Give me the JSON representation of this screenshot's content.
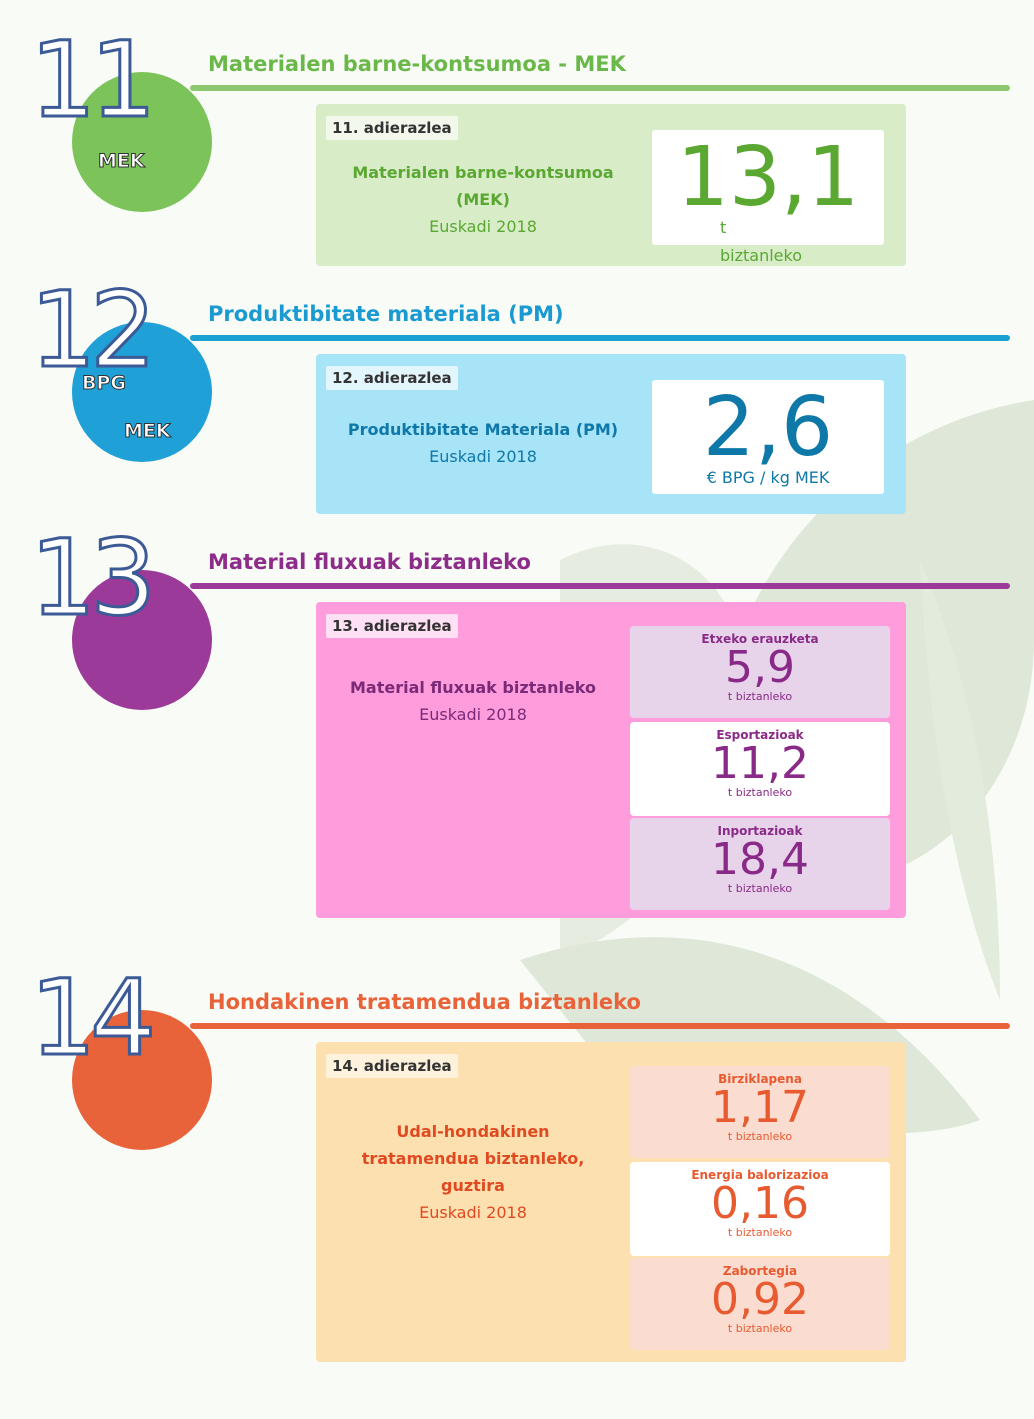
{
  "sections": [
    {
      "number": "11",
      "title": "Materialen barne-kontsumoa - MEK",
      "icon_labels": [
        "MEK"
      ],
      "indicator": "11. adierazlea",
      "description": [
        "Materialen barne-kontsumoa",
        "(MEK)"
      ],
      "region": "Euskadi 2018",
      "value": "13,1",
      "unit": [
        "t",
        "biztanleko"
      ]
    },
    {
      "number": "12",
      "title": "Produktibitate materiala (PM)",
      "icon_labels": [
        "BPG",
        "MEK"
      ],
      "indicator": "12. adierazlea",
      "description": [
        "Produktibitate Materiala (PM)"
      ],
      "region": "Euskadi 2018",
      "value": "2,6",
      "unit": [
        "€ BPG / kg MEK"
      ]
    },
    {
      "number": "13",
      "title": "Material fluxuak biztanleko",
      "indicator": "13. adierazlea",
      "description": [
        "Material fluxuak biztanleko"
      ],
      "region": "Euskadi 2018",
      "items": [
        {
          "label": "Etxeko erauzketa",
          "value": "5,9",
          "unit": "t biztanleko"
        },
        {
          "label": "Esportazioak",
          "value": "11,2",
          "unit": "t biztanleko"
        },
        {
          "label": "Inportazioak",
          "value": "18,4",
          "unit": "t biztanleko"
        }
      ]
    },
    {
      "number": "14",
      "title": "Hondakinen tratamendua biztanleko",
      "indicator": "14. adierazlea",
      "description": [
        "Udal-hondakinen",
        "tratamendua biztanleko,",
        "guztira"
      ],
      "region": "Euskadi 2018",
      "items": [
        {
          "label": "Birziklapena",
          "value": "1,17",
          "unit": "t biztanleko"
        },
        {
          "label": "Energia balorizazioa",
          "value": "0,16",
          "unit": "t biztanleko"
        },
        {
          "label": "Zabortegia",
          "value": "0,92",
          "unit": "t biztanleko"
        }
      ]
    }
  ]
}
